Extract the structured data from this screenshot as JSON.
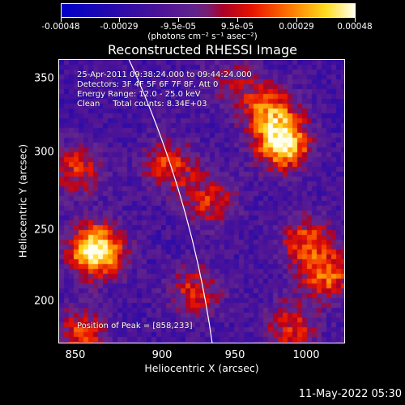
{
  "colorbar": {
    "tick_labels": [
      "-0.00048",
      "-0.00029",
      "-9.5e-05",
      "9.5e-05",
      "0.00029",
      "0.00048"
    ],
    "units_label": "(photons cm⁻² s⁻¹ asec⁻²)",
    "range": [
      -0.00048,
      0.00048
    ]
  },
  "chart_data": {
    "type": "heatmap",
    "title": "Reconstructed RHESSI Image",
    "xlabel": "Heliocentric X (arcsec)",
    "ylabel": "Heliocentric Y (arcsec)",
    "xlim": [
      833,
      1027
    ],
    "ylim": [
      168,
      366
    ],
    "x_ticks": [
      "850",
      "900",
      "950",
      "1000"
    ],
    "y_ticks": [
      "200",
      "250",
      "300",
      "350"
    ],
    "annotations": [
      "25-Apr-2011 09:38:24.000 to 09:44:24.000",
      "Detectors: 3F 4F 5F 6F 7F 8F, Att 0",
      "Energy Range: 12.0 - 25.0 keV",
      "Clean     Total counts: 8.34E+03"
    ],
    "peak_label": "Position of Peak = [858,233]",
    "peak": [
      858,
      233
    ],
    "sources": [
      {
        "x": 858,
        "y": 233,
        "amp": 1.0
      },
      {
        "x": 985,
        "y": 307,
        "amp": 0.85
      },
      {
        "x": 975,
        "y": 330,
        "amp": 0.6
      },
      {
        "x": 908,
        "y": 293,
        "amp": 0.5
      },
      {
        "x": 935,
        "y": 268,
        "amp": 0.45
      },
      {
        "x": 1000,
        "y": 240,
        "amp": 0.5
      },
      {
        "x": 1015,
        "y": 215,
        "amp": 0.55
      },
      {
        "x": 925,
        "y": 205,
        "amp": 0.45
      },
      {
        "x": 845,
        "y": 290,
        "amp": 0.45
      },
      {
        "x": 848,
        "y": 175,
        "amp": 0.5
      },
      {
        "x": 950,
        "y": 350,
        "amp": 0.3
      },
      {
        "x": 990,
        "y": 180,
        "amp": 0.45
      }
    ]
  },
  "footer": {
    "date": "11-May-2022 05:30"
  }
}
